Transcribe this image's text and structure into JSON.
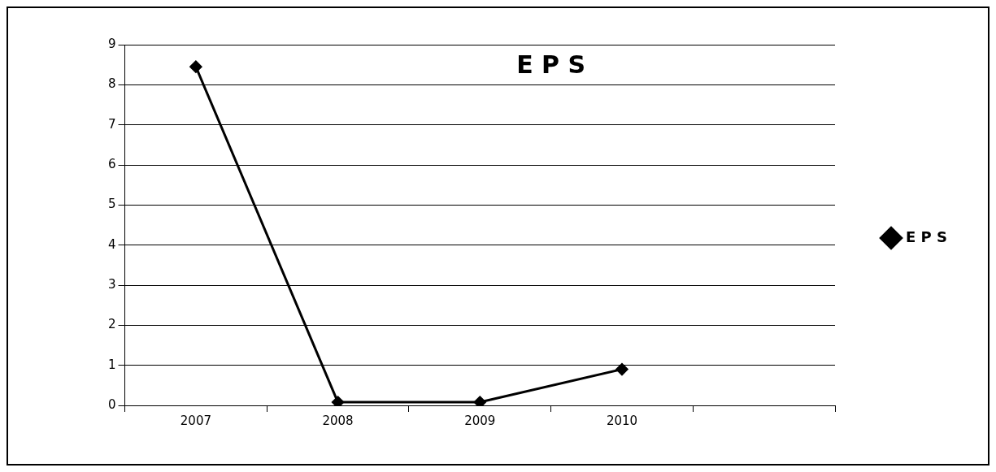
{
  "chart_data": {
    "type": "line",
    "title": "E P S",
    "categories": [
      "2007",
      "2008",
      "2009",
      "2010",
      null
    ],
    "series": [
      {
        "name": "E P S",
        "color": "#000000",
        "values": [
          8.45,
          0.08,
          0.08,
          0.9,
          null
        ]
      }
    ],
    "ylim": [
      0,
      9
    ],
    "yticks": [
      0,
      1,
      2,
      3,
      4,
      5,
      6,
      7,
      8,
      9
    ],
    "grid": "y",
    "legend": "right",
    "marker": "diamond",
    "line_style": "solid"
  }
}
